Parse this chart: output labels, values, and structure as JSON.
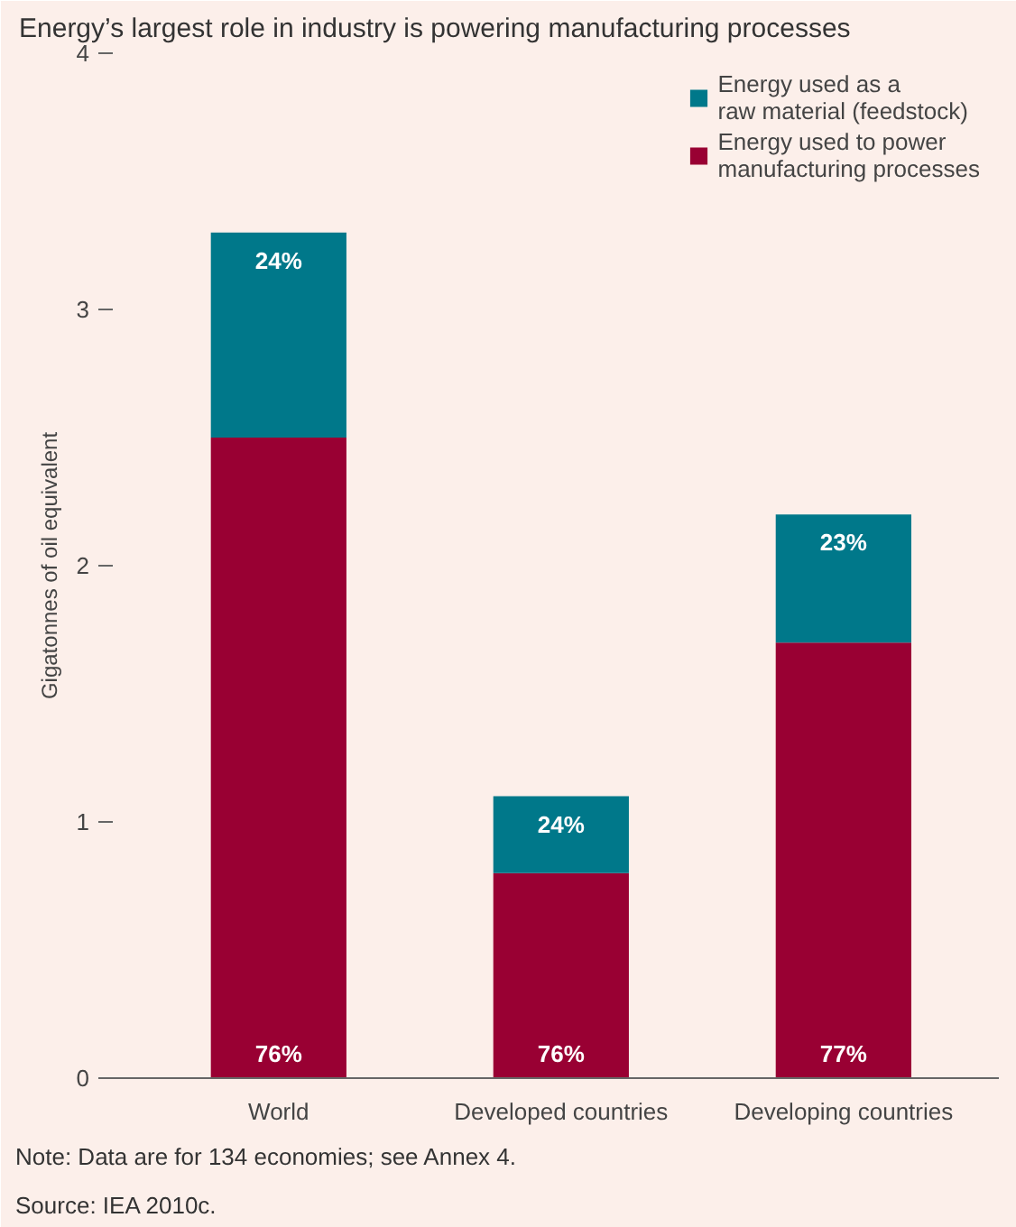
{
  "chart_data": {
    "type": "bar",
    "title": "Energy’s largest role in industry is powering manufacturing processes",
    "ylabel": "Gigatonnes of oil equivalent",
    "categories": [
      "World",
      "Developed countries",
      "Developing countries"
    ],
    "stacked": true,
    "ylim": [
      0,
      4
    ],
    "yticks": [
      0,
      1,
      2,
      3,
      4
    ],
    "grid": false,
    "legend": "top right",
    "series": [
      {
        "name": "Energy used to power\nmanufacturing processes",
        "color": "#990033",
        "values": [
          2.5,
          0.8,
          1.7
        ]
      },
      {
        "name": "Energy used as a\nraw material (feedstock)",
        "color": "#00788a",
        "values": [
          0.8,
          0.3,
          0.5
        ]
      }
    ],
    "annotations": [
      "76%",
      "76%",
      "77%",
      "24%",
      "24%",
      "23%",
      "Note: Data are for 134 economies; see Annex 4.",
      "Source: IEA 2010c."
    ]
  }
}
